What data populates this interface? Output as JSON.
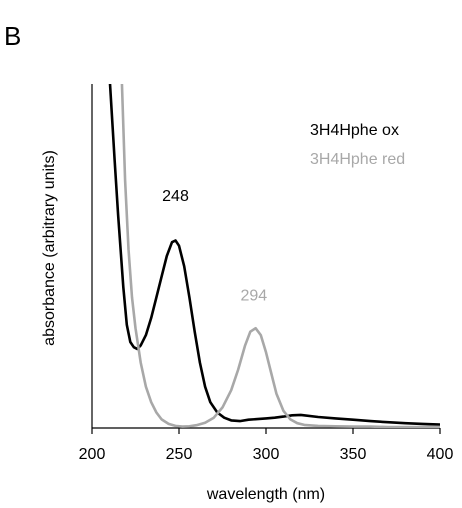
{
  "panel_label": "B",
  "chart_data": {
    "type": "line",
    "title": "",
    "xlabel": "wavelength (nm)",
    "ylabel": "absorbance (arbitrary units)",
    "xlim": [
      200,
      400
    ],
    "ylim": [
      0,
      1
    ],
    "x_ticks": [
      200,
      250,
      300,
      350,
      400
    ],
    "y_ticks": [],
    "grid": false,
    "legend_position": "top-right",
    "series": [
      {
        "name": "3H4Hphe ox",
        "color": "#000000",
        "x": [
          210,
          213,
          215,
          218,
          220,
          222,
          224,
          226,
          228,
          231,
          234,
          237,
          240,
          243,
          246,
          248,
          250,
          253,
          256,
          259,
          262,
          265,
          268,
          272,
          276,
          280,
          285,
          290,
          295,
          300,
          305,
          310,
          315,
          320,
          330,
          340,
          350,
          360,
          370,
          380,
          390,
          400
        ],
        "y": [
          1.03,
          0.78,
          0.62,
          0.41,
          0.3,
          0.25,
          0.235,
          0.23,
          0.24,
          0.27,
          0.32,
          0.38,
          0.44,
          0.5,
          0.54,
          0.545,
          0.53,
          0.47,
          0.38,
          0.28,
          0.19,
          0.12,
          0.075,
          0.045,
          0.03,
          0.022,
          0.02,
          0.024,
          0.026,
          0.028,
          0.03,
          0.033,
          0.037,
          0.038,
          0.032,
          0.028,
          0.024,
          0.02,
          0.017,
          0.014,
          0.012,
          0.01
        ]
      },
      {
        "name": "3H4Hphe red",
        "color": "#a8a8a8",
        "x": [
          217,
          219,
          221,
          223,
          225,
          228,
          231,
          234,
          237,
          240,
          244,
          248,
          252,
          256,
          260,
          265,
          270,
          275,
          280,
          284,
          288,
          291,
          294,
          297,
          300,
          303,
          306,
          310,
          314,
          318,
          322,
          330,
          340,
          350,
          360,
          370,
          380,
          390,
          400
        ],
        "y": [
          1.03,
          0.72,
          0.52,
          0.38,
          0.29,
          0.19,
          0.12,
          0.075,
          0.045,
          0.025,
          0.012,
          0.006,
          0.004,
          0.005,
          0.008,
          0.015,
          0.03,
          0.06,
          0.11,
          0.17,
          0.24,
          0.28,
          0.29,
          0.27,
          0.22,
          0.16,
          0.1,
          0.05,
          0.025,
          0.014,
          0.009,
          0.006,
          0.005,
          0.004,
          0.004,
          0.003,
          0.003,
          0.003,
          0.003
        ]
      }
    ],
    "annotations": [
      {
        "text": "248",
        "x": 248,
        "y": 0.66,
        "series": 0
      },
      {
        "text": "294",
        "x": 293,
        "y": 0.37,
        "series": 1
      }
    ]
  }
}
